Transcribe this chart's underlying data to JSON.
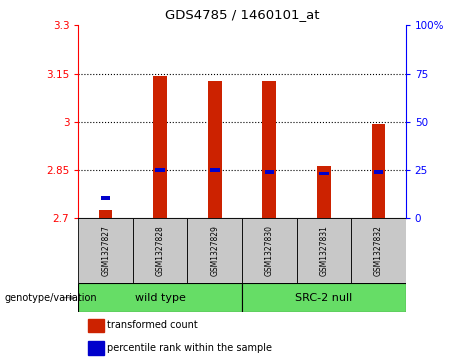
{
  "title": "GDS4785 / 1460101_at",
  "samples": [
    "GSM1327827",
    "GSM1327828",
    "GSM1327829",
    "GSM1327830",
    "GSM1327831",
    "GSM1327832"
  ],
  "red_values": [
    2.725,
    3.143,
    3.128,
    3.128,
    2.862,
    2.993
  ],
  "blue_values": [
    2.762,
    2.849,
    2.849,
    2.843,
    2.837,
    2.843
  ],
  "y_min": 2.7,
  "y_max": 3.3,
  "y_ticks": [
    2.7,
    2.85,
    3.0,
    3.15,
    3.3
  ],
  "y_tick_labels": [
    "2.7",
    "2.85",
    "3",
    "3.15",
    "3.3"
  ],
  "right_y_ticks": [
    0,
    25,
    50,
    75,
    100
  ],
  "right_y_labels": [
    "0",
    "25",
    "50",
    "75",
    "100%"
  ],
  "dotted_lines": [
    2.85,
    3.0,
    3.15
  ],
  "group_label": "genotype/variation",
  "group1_label": "wild type",
  "group1_samples": [
    0,
    1,
    2
  ],
  "group2_label": "SRC-2 null",
  "group2_samples": [
    3,
    4,
    5
  ],
  "legend_red": "transformed count",
  "legend_blue": "percentile rank within the sample",
  "bar_color_red": "#CC2200",
  "bar_color_blue": "#0000CC",
  "bg_xticklabels": "#C8C8C8",
  "bg_group": "#66DD66",
  "bar_width": 0.25
}
